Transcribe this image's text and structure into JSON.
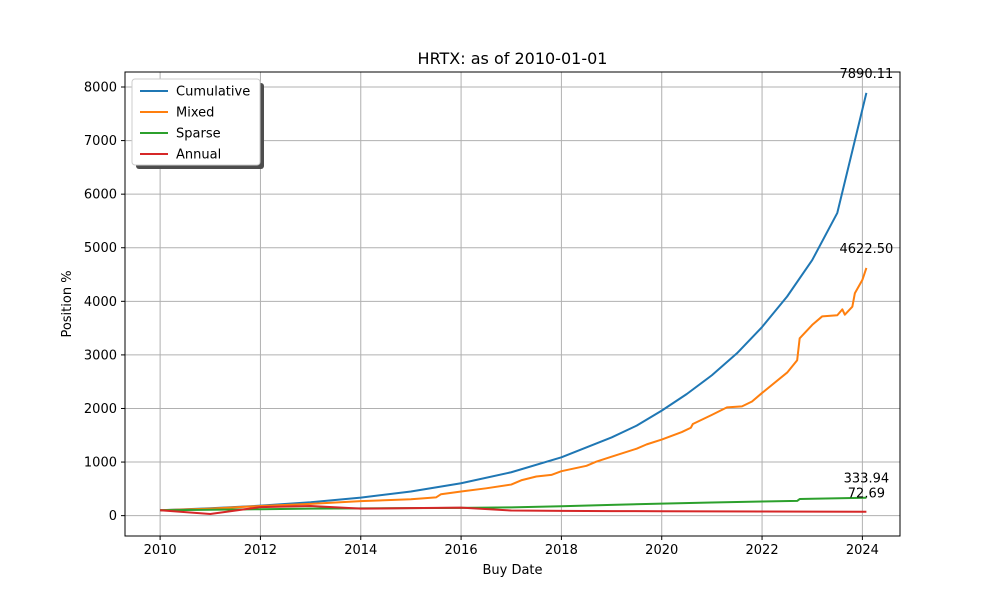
{
  "chart_data": {
    "type": "line",
    "title": "HRTX: as of 2010-01-01",
    "xlabel": "Buy Date",
    "ylabel": "Position %",
    "xlim": [
      2009.3,
      2024.75
    ],
    "ylim": [
      -380,
      8280
    ],
    "x_ticks": [
      2010,
      2012,
      2014,
      2016,
      2018,
      2020,
      2022,
      2024
    ],
    "y_ticks": [
      0,
      1000,
      2000,
      3000,
      4000,
      5000,
      6000,
      7000,
      8000
    ],
    "grid": true,
    "legend": "upper-left",
    "series": [
      {
        "name": "Cumulative",
        "color": "#1f77b4",
        "end_label": "7890.11",
        "points": [
          [
            2010.0,
            100
          ],
          [
            2011.0,
            139
          ],
          [
            2012.0,
            186
          ],
          [
            2013.0,
            250
          ],
          [
            2014.0,
            336
          ],
          [
            2015.0,
            450
          ],
          [
            2016.0,
            605
          ],
          [
            2017.0,
            810
          ],
          [
            2018.0,
            1088
          ],
          [
            2019.0,
            1460
          ],
          [
            2019.5,
            1680
          ],
          [
            2020.0,
            1960
          ],
          [
            2020.5,
            2270
          ],
          [
            2021.0,
            2620
          ],
          [
            2021.5,
            3030
          ],
          [
            2022.0,
            3520
          ],
          [
            2022.5,
            4090
          ],
          [
            2023.0,
            4770
          ],
          [
            2023.5,
            5650
          ],
          [
            2024.08,
            7890.11
          ]
        ]
      },
      {
        "name": "Mixed",
        "color": "#ff7f0e",
        "end_label": "4622.50",
        "points": [
          [
            2010.0,
            100
          ],
          [
            2011.0,
            130
          ],
          [
            2012.0,
            180
          ],
          [
            2013.0,
            220
          ],
          [
            2014.0,
            270
          ],
          [
            2015.0,
            305
          ],
          [
            2015.5,
            340
          ],
          [
            2015.6,
            400
          ],
          [
            2016.0,
            450
          ],
          [
            2016.5,
            510
          ],
          [
            2017.0,
            580
          ],
          [
            2017.2,
            660
          ],
          [
            2017.5,
            730
          ],
          [
            2017.8,
            760
          ],
          [
            2018.0,
            830
          ],
          [
            2018.5,
            930
          ],
          [
            2018.7,
            1010
          ],
          [
            2019.0,
            1100
          ],
          [
            2019.5,
            1250
          ],
          [
            2019.7,
            1330
          ],
          [
            2020.0,
            1420
          ],
          [
            2020.4,
            1560
          ],
          [
            2020.58,
            1640
          ],
          [
            2020.62,
            1710
          ],
          [
            2021.0,
            1880
          ],
          [
            2021.3,
            2020
          ],
          [
            2021.6,
            2040
          ],
          [
            2021.8,
            2130
          ],
          [
            2022.0,
            2290
          ],
          [
            2022.5,
            2670
          ],
          [
            2022.7,
            2900
          ],
          [
            2022.75,
            3310
          ],
          [
            2023.0,
            3560
          ],
          [
            2023.2,
            3720
          ],
          [
            2023.5,
            3740
          ],
          [
            2023.6,
            3850
          ],
          [
            2023.65,
            3750
          ],
          [
            2023.8,
            3900
          ],
          [
            2023.85,
            4150
          ],
          [
            2024.0,
            4400
          ],
          [
            2024.08,
            4622.5
          ]
        ]
      },
      {
        "name": "Sparse",
        "color": "#2ca02c",
        "end_label": "333.94",
        "points": [
          [
            2010.0,
            100
          ],
          [
            2011.0,
            110
          ],
          [
            2012.0,
            120
          ],
          [
            2013.0,
            130
          ],
          [
            2014.0,
            135
          ],
          [
            2015.0,
            140
          ],
          [
            2016.0,
            145
          ],
          [
            2017.0,
            155
          ],
          [
            2018.0,
            175
          ],
          [
            2019.0,
            200
          ],
          [
            2020.0,
            225
          ],
          [
            2021.0,
            245
          ],
          [
            2022.0,
            265
          ],
          [
            2022.7,
            275
          ],
          [
            2022.75,
            310
          ],
          [
            2023.0,
            315
          ],
          [
            2024.08,
            333.94
          ]
        ]
      },
      {
        "name": "Annual",
        "color": "#d62728",
        "end_label": "72.69",
        "points": [
          [
            2010.0,
            100
          ],
          [
            2011.0,
            30
          ],
          [
            2012.0,
            160
          ],
          [
            2013.0,
            180
          ],
          [
            2014.0,
            130
          ],
          [
            2015.0,
            140
          ],
          [
            2016.0,
            150
          ],
          [
            2017.0,
            95
          ],
          [
            2018.0,
            90
          ],
          [
            2019.0,
            85
          ],
          [
            2020.0,
            82
          ],
          [
            2021.0,
            80
          ],
          [
            2022.0,
            77
          ],
          [
            2023.0,
            75
          ],
          [
            2024.08,
            72.69
          ]
        ]
      }
    ]
  }
}
